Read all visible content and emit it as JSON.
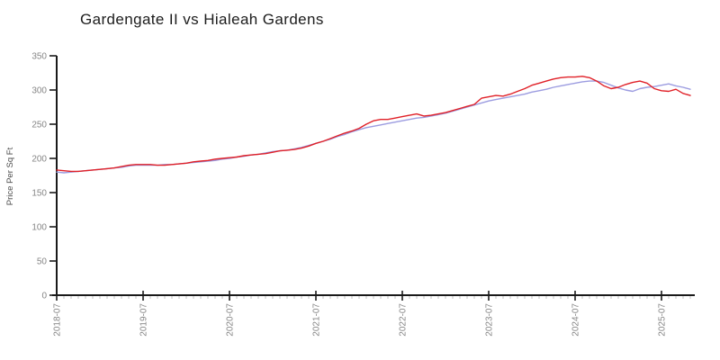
{
  "chart_data": {
    "type": "line",
    "title": "Gardengate II vs Hialeah Gardens",
    "ylabel": "Price Per Sq Ft",
    "ylim": [
      0,
      350
    ],
    "y_ticks": [
      0,
      50,
      100,
      150,
      200,
      250,
      300,
      350
    ],
    "x_tick_labels": [
      "2018-07",
      "2019-07",
      "2020-07",
      "2021-07",
      "2022-07",
      "2023-07",
      "2024-07",
      "2025-07"
    ],
    "x_minor_ticks": "monthly",
    "grid": false,
    "legend": "none",
    "axis_color": "#1a1a1a",
    "tick_label_color": "#868686",
    "categories": [
      "2018-07",
      "2018-08",
      "2018-09",
      "2018-10",
      "2018-11",
      "2018-12",
      "2019-01",
      "2019-02",
      "2019-03",
      "2019-04",
      "2019-05",
      "2019-06",
      "2019-07",
      "2019-08",
      "2019-09",
      "2019-10",
      "2019-11",
      "2019-12",
      "2020-01",
      "2020-02",
      "2020-03",
      "2020-04",
      "2020-05",
      "2020-06",
      "2020-07",
      "2020-08",
      "2020-09",
      "2020-10",
      "2020-11",
      "2020-12",
      "2021-01",
      "2021-02",
      "2021-03",
      "2021-04",
      "2021-05",
      "2021-06",
      "2021-07",
      "2021-08",
      "2021-09",
      "2021-10",
      "2021-11",
      "2021-12",
      "2022-01",
      "2022-02",
      "2022-03",
      "2022-04",
      "2022-05",
      "2022-06",
      "2022-07",
      "2022-08",
      "2022-09",
      "2022-10",
      "2022-11",
      "2022-12",
      "2023-01",
      "2023-02",
      "2023-03",
      "2023-04",
      "2023-05",
      "2023-06",
      "2023-07",
      "2023-08",
      "2023-09",
      "2023-10",
      "2023-11",
      "2023-12",
      "2024-01",
      "2024-02",
      "2024-03",
      "2024-04",
      "2024-05",
      "2024-06",
      "2024-07",
      "2024-08",
      "2024-09",
      "2024-10",
      "2024-11",
      "2024-12",
      "2025-01",
      "2025-02",
      "2025-03",
      "2025-04",
      "2025-05",
      "2025-06",
      "2025-07",
      "2025-08",
      "2025-09",
      "2025-10",
      "2025-11"
    ],
    "series": [
      {
        "name": "Gardengate II",
        "color": "#e02027",
        "values": [
          183,
          182,
          181,
          181,
          182,
          183,
          184,
          185,
          186,
          188,
          190,
          191,
          191,
          191,
          190,
          190,
          191,
          192,
          193,
          195,
          196,
          197,
          199,
          200,
          201,
          202,
          204,
          205,
          206,
          207,
          209,
          211,
          212,
          213,
          215,
          218,
          222,
          225,
          229,
          233,
          237,
          240,
          244,
          250,
          255,
          257,
          257,
          259,
          261,
          263,
          265,
          262,
          263,
          265,
          267,
          270,
          273,
          276,
          279,
          288,
          290,
          292,
          291,
          294,
          298,
          302,
          307,
          310,
          313,
          316,
          318,
          319,
          319,
          320,
          318,
          313,
          306,
          302,
          304,
          308,
          311,
          313,
          310,
          302,
          299,
          298,
          301,
          295,
          292
        ]
      },
      {
        "name": "Hialeah Gardens",
        "color": "#9c9ce0",
        "values": [
          180,
          179,
          180,
          181,
          182,
          183,
          184,
          185,
          186,
          187,
          189,
          190,
          190,
          190,
          190,
          191,
          191,
          192,
          193,
          194,
          195,
          196,
          197,
          199,
          200,
          202,
          203,
          205,
          206,
          208,
          210,
          211,
          212,
          214,
          216,
          219,
          222,
          225,
          228,
          232,
          235,
          239,
          242,
          245,
          247,
          249,
          251,
          253,
          255,
          257,
          259,
          260,
          262,
          264,
          266,
          269,
          272,
          275,
          278,
          281,
          284,
          286,
          288,
          290,
          292,
          294,
          297,
          299,
          301,
          304,
          306,
          308,
          310,
          312,
          313,
          313,
          311,
          307,
          303,
          300,
          298,
          302,
          304,
          305,
          307,
          309,
          306,
          304,
          301
        ]
      }
    ]
  }
}
